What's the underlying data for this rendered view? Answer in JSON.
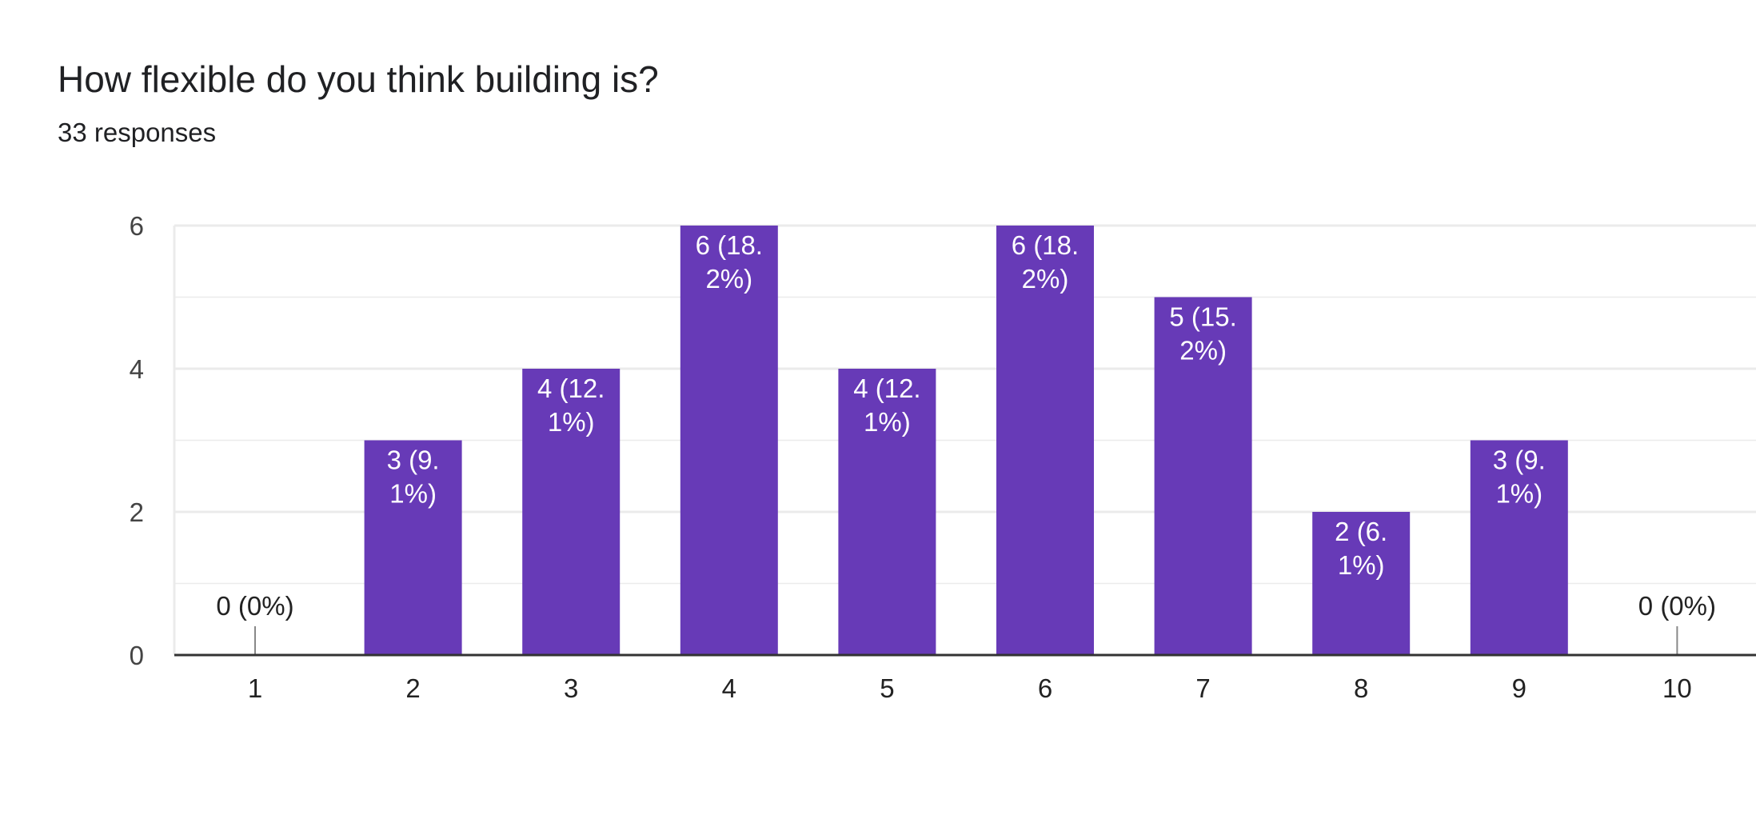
{
  "header": {
    "title": "How flexible do you think building is?",
    "responses": "33 responses"
  },
  "colors": {
    "bar": "#673ab7",
    "gridline": "#ebebeb",
    "baseline": "#333333",
    "label_inside": "#ffffff",
    "label_outside": "#222222"
  },
  "chart_data": {
    "type": "bar",
    "title": "How flexible do you think building is?",
    "subtitle": "33 responses",
    "categories": [
      "1",
      "2",
      "3",
      "4",
      "5",
      "6",
      "7",
      "8",
      "9",
      "10"
    ],
    "values": [
      0,
      3,
      4,
      6,
      4,
      6,
      5,
      2,
      3,
      0
    ],
    "data_labels": [
      [
        "0 (0%)"
      ],
      [
        "3 (9.",
        "1%)"
      ],
      [
        "4 (12.",
        "1%)"
      ],
      [
        "6 (18.",
        "2%)"
      ],
      [
        "4 (12.",
        "1%)"
      ],
      [
        "6 (18.",
        "2%)"
      ],
      [
        "5 (15.",
        "2%)"
      ],
      [
        "2 (6.",
        "1%)"
      ],
      [
        "3 (9.",
        "1%)"
      ],
      [
        "0 (0%)"
      ]
    ],
    "yticks": [
      0,
      2,
      4,
      6
    ],
    "ylim": [
      0,
      6
    ],
    "xlabel": "",
    "ylabel": "",
    "grid": true,
    "legend": "none"
  }
}
